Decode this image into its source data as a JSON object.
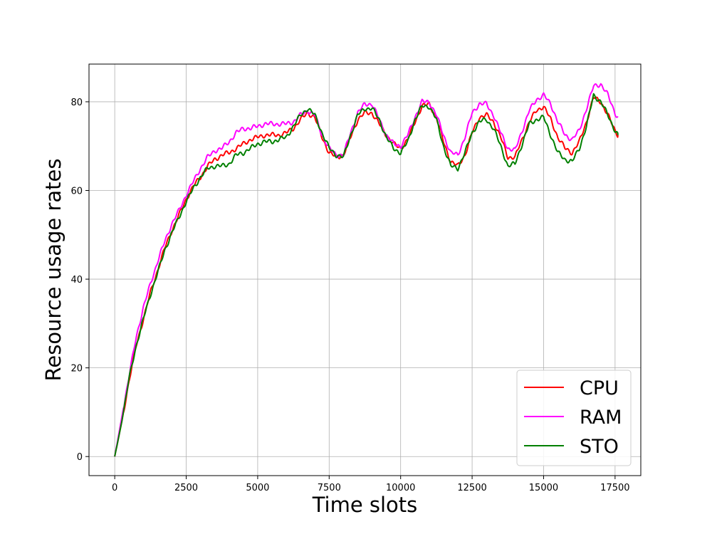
{
  "chart_data": {
    "type": "line",
    "title": "",
    "xlabel": "Time slots",
    "ylabel": "Resource usage rates",
    "xlim": [
      -900,
      18400
    ],
    "ylim": [
      -4.3,
      88.5
    ],
    "xticks": [
      0,
      2500,
      5000,
      7500,
      10000,
      12500,
      15000,
      17500
    ],
    "yticks": [
      0,
      20,
      40,
      60,
      80
    ],
    "grid": true,
    "legend_position": "lower-right",
    "series": [
      {
        "name": "CPU",
        "color": "#ff0000",
        "points": [
          [
            0,
            0
          ],
          [
            250,
            8
          ],
          [
            500,
            17
          ],
          [
            750,
            25
          ],
          [
            1000,
            31
          ],
          [
            1250,
            37
          ],
          [
            1500,
            42
          ],
          [
            1750,
            47
          ],
          [
            2000,
            51
          ],
          [
            2250,
            54.5
          ],
          [
            2500,
            58
          ],
          [
            2750,
            61
          ],
          [
            3000,
            63
          ],
          [
            3250,
            65.5
          ],
          [
            3500,
            67
          ],
          [
            3750,
            68
          ],
          [
            4000,
            68.5
          ],
          [
            4250,
            69.5
          ],
          [
            4500,
            70.5
          ],
          [
            4750,
            71.5
          ],
          [
            5000,
            72
          ],
          [
            5250,
            72.5
          ],
          [
            5500,
            72.5
          ],
          [
            5750,
            72.5
          ],
          [
            6000,
            73
          ],
          [
            6250,
            74
          ],
          [
            6500,
            76
          ],
          [
            6750,
            77.5
          ],
          [
            7000,
            76.5
          ],
          [
            7250,
            72
          ],
          [
            7500,
            68.5
          ],
          [
            7750,
            67.5
          ],
          [
            8000,
            68
          ],
          [
            8250,
            72
          ],
          [
            8500,
            76
          ],
          [
            8750,
            77.5
          ],
          [
            9000,
            77.5
          ],
          [
            9250,
            75
          ],
          [
            9500,
            72.5
          ],
          [
            9750,
            70.5
          ],
          [
            10000,
            69.5
          ],
          [
            10250,
            71.5
          ],
          [
            10500,
            75.5
          ],
          [
            10750,
            79
          ],
          [
            11000,
            79.5
          ],
          [
            11250,
            76.5
          ],
          [
            11500,
            71
          ],
          [
            11750,
            66.5
          ],
          [
            12000,
            65.5
          ],
          [
            12250,
            68
          ],
          [
            12500,
            73
          ],
          [
            12750,
            76.5
          ],
          [
            13000,
            77
          ],
          [
            13250,
            75.5
          ],
          [
            13500,
            72
          ],
          [
            13750,
            67.5
          ],
          [
            14000,
            67.5
          ],
          [
            14250,
            71.5
          ],
          [
            14500,
            75.5
          ],
          [
            14750,
            78
          ],
          [
            15000,
            79
          ],
          [
            15250,
            76
          ],
          [
            15500,
            72
          ],
          [
            15750,
            69.5
          ],
          [
            16000,
            68.5
          ],
          [
            16250,
            71
          ],
          [
            16500,
            75.5
          ],
          [
            16750,
            81
          ],
          [
            17000,
            80
          ],
          [
            17250,
            77
          ],
          [
            17500,
            73.5
          ],
          [
            17600,
            72.5
          ]
        ]
      },
      {
        "name": "RAM",
        "color": "#ff00ff",
        "points": [
          [
            0,
            0
          ],
          [
            250,
            9
          ],
          [
            500,
            18
          ],
          [
            750,
            27
          ],
          [
            1000,
            33.5
          ],
          [
            1250,
            39
          ],
          [
            1500,
            44
          ],
          [
            1750,
            48.5
          ],
          [
            2000,
            52.5
          ],
          [
            2250,
            55.5
          ],
          [
            2500,
            59
          ],
          [
            2750,
            62
          ],
          [
            3000,
            65
          ],
          [
            3250,
            67.5
          ],
          [
            3500,
            69
          ],
          [
            3750,
            69.5
          ],
          [
            4000,
            71
          ],
          [
            4250,
            73
          ],
          [
            4500,
            74
          ],
          [
            4750,
            74
          ],
          [
            5000,
            74.5
          ],
          [
            5250,
            75
          ],
          [
            5500,
            75
          ],
          [
            5750,
            75
          ],
          [
            6000,
            75
          ],
          [
            6250,
            75.5
          ],
          [
            6500,
            77
          ],
          [
            6750,
            78
          ],
          [
            7000,
            77
          ],
          [
            7250,
            72.5
          ],
          [
            7500,
            69.5
          ],
          [
            7750,
            68
          ],
          [
            8000,
            68
          ],
          [
            8250,
            73
          ],
          [
            8500,
            77.5
          ],
          [
            8750,
            79.5
          ],
          [
            9000,
            79.5
          ],
          [
            9250,
            76
          ],
          [
            9500,
            72.5
          ],
          [
            9750,
            70.5
          ],
          [
            10000,
            70
          ],
          [
            10250,
            72.5
          ],
          [
            10500,
            76.5
          ],
          [
            10750,
            80
          ],
          [
            11000,
            80
          ],
          [
            11250,
            77
          ],
          [
            11500,
            72.5
          ],
          [
            11750,
            68.5
          ],
          [
            12000,
            68
          ],
          [
            12250,
            72
          ],
          [
            12500,
            77.5
          ],
          [
            12750,
            79.5
          ],
          [
            13000,
            79.5
          ],
          [
            13250,
            77
          ],
          [
            13500,
            73
          ],
          [
            13750,
            69.5
          ],
          [
            14000,
            69
          ],
          [
            14250,
            73.5
          ],
          [
            14500,
            78
          ],
          [
            14750,
            80.5
          ],
          [
            15000,
            81.5
          ],
          [
            15250,
            79.5
          ],
          [
            15500,
            75.5
          ],
          [
            15750,
            72.5
          ],
          [
            16000,
            71.5
          ],
          [
            16250,
            73.5
          ],
          [
            16500,
            78.5
          ],
          [
            16750,
            83.5
          ],
          [
            17000,
            84
          ],
          [
            17250,
            81.5
          ],
          [
            17500,
            77.5
          ],
          [
            17600,
            76.5
          ]
        ]
      },
      {
        "name": "STO",
        "color": "#008000",
        "points": [
          [
            0,
            0
          ],
          [
            250,
            8
          ],
          [
            500,
            17.5
          ],
          [
            750,
            25
          ],
          [
            1000,
            31
          ],
          [
            1250,
            36.5
          ],
          [
            1500,
            41.5
          ],
          [
            1750,
            46.5
          ],
          [
            2000,
            50.5
          ],
          [
            2250,
            54
          ],
          [
            2500,
            57.5
          ],
          [
            2750,
            60.5
          ],
          [
            3000,
            63
          ],
          [
            3250,
            65
          ],
          [
            3500,
            65.5
          ],
          [
            3750,
            65.5
          ],
          [
            4000,
            66
          ],
          [
            4250,
            68
          ],
          [
            4500,
            68.5
          ],
          [
            4750,
            69.5
          ],
          [
            5000,
            70.5
          ],
          [
            5250,
            71
          ],
          [
            5500,
            71
          ],
          [
            5750,
            71.5
          ],
          [
            6000,
            72
          ],
          [
            6250,
            74.5
          ],
          [
            6500,
            77
          ],
          [
            6750,
            78.5
          ],
          [
            7000,
            77
          ],
          [
            7250,
            73
          ],
          [
            7500,
            69.5
          ],
          [
            7750,
            68
          ],
          [
            8000,
            67.5
          ],
          [
            8250,
            72.5
          ],
          [
            8500,
            77
          ],
          [
            8750,
            78.5
          ],
          [
            9000,
            78.5
          ],
          [
            9250,
            76
          ],
          [
            9500,
            72
          ],
          [
            9750,
            69.5
          ],
          [
            10000,
            68.5
          ],
          [
            10250,
            71
          ],
          [
            10500,
            76
          ],
          [
            10750,
            79
          ],
          [
            11000,
            79
          ],
          [
            11250,
            76
          ],
          [
            11500,
            70
          ],
          [
            11750,
            65.5
          ],
          [
            12000,
            65
          ],
          [
            12250,
            68.5
          ],
          [
            12500,
            73
          ],
          [
            12750,
            75.5
          ],
          [
            13000,
            76
          ],
          [
            13250,
            74
          ],
          [
            13500,
            70
          ],
          [
            13750,
            65.5
          ],
          [
            14000,
            66
          ],
          [
            14250,
            70.5
          ],
          [
            14500,
            75
          ],
          [
            14750,
            76
          ],
          [
            15000,
            76.5
          ],
          [
            15250,
            72.5
          ],
          [
            15500,
            68.5
          ],
          [
            15750,
            67
          ],
          [
            16000,
            66.5
          ],
          [
            16250,
            69.5
          ],
          [
            16500,
            74.5
          ],
          [
            16750,
            81.5
          ],
          [
            17000,
            80
          ],
          [
            17250,
            77
          ],
          [
            17500,
            73.5
          ],
          [
            17600,
            72.5
          ]
        ]
      }
    ]
  }
}
